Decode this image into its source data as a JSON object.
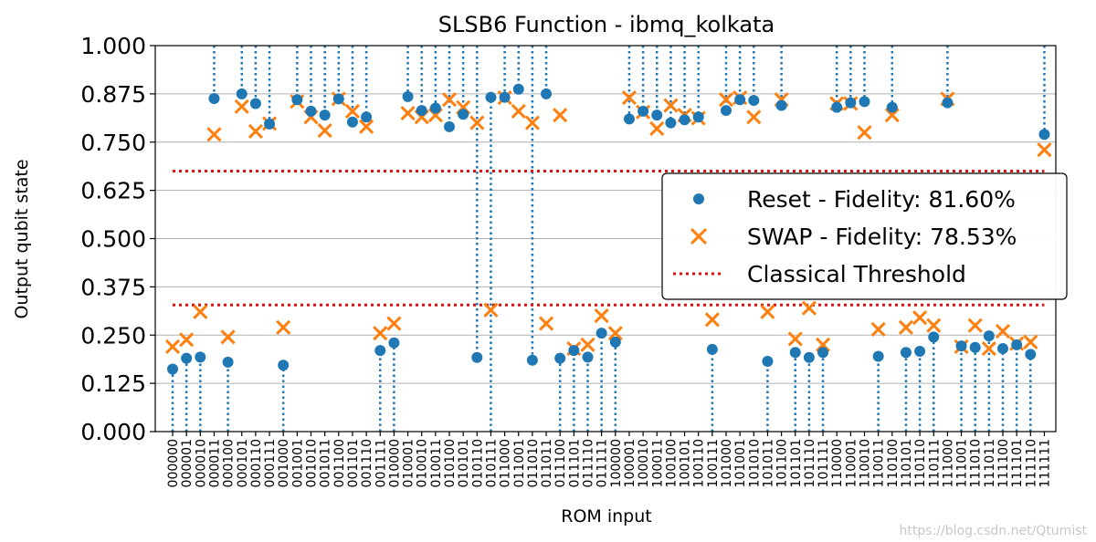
{
  "chart_data": {
    "type": "scatter",
    "title": "SLSB6 Function - ibmq_kolkata",
    "xlabel": "ROM input",
    "ylabel": "Output qubit state",
    "ylim": [
      0,
      1
    ],
    "yticks": [
      "0.000",
      "0.125",
      "0.250",
      "0.375",
      "0.500",
      "0.625",
      "0.750",
      "0.875",
      "1.000"
    ],
    "grid": "horizontal",
    "legend_position": "center-right",
    "categories": [
      "000000",
      "000001",
      "000010",
      "000011",
      "000100",
      "000101",
      "000110",
      "000111",
      "001000",
      "001001",
      "001010",
      "001011",
      "001100",
      "001101",
      "001110",
      "001111",
      "010000",
      "010001",
      "010010",
      "010011",
      "010100",
      "010101",
      "010110",
      "010111",
      "011000",
      "011001",
      "011010",
      "011011",
      "011100",
      "011101",
      "011110",
      "011111",
      "100000",
      "100001",
      "100010",
      "100011",
      "100100",
      "100101",
      "100110",
      "100111",
      "101000",
      "101001",
      "101010",
      "101011",
      "101100",
      "101101",
      "101110",
      "101111",
      "110000",
      "110001",
      "110010",
      "110011",
      "110100",
      "110101",
      "110110",
      "110111",
      "111000",
      "111001",
      "111010",
      "111011",
      "111100",
      "111101",
      "111110",
      "111111"
    ],
    "expected": [
      0,
      0,
      0,
      1,
      0,
      1,
      1,
      1,
      0,
      1,
      1,
      1,
      1,
      1,
      1,
      0,
      0,
      1,
      1,
      1,
      1,
      1,
      1,
      0,
      1,
      1,
      1,
      1,
      0,
      0,
      0,
      0,
      0,
      1,
      1,
      1,
      1,
      1,
      1,
      0,
      1,
      1,
      1,
      0,
      1,
      0,
      0,
      0,
      1,
      1,
      1,
      0,
      1,
      0,
      0,
      0,
      1,
      0,
      0,
      0,
      0,
      0,
      0,
      1
    ],
    "series": [
      {
        "name": "Reset - Fidelity: 81.60%",
        "marker": "circle",
        "color": "#1f77b4",
        "values": [
          0.162,
          0.19,
          0.193,
          0.863,
          0.18,
          0.875,
          0.85,
          0.797,
          0.172,
          0.86,
          0.83,
          0.82,
          0.862,
          0.802,
          0.815,
          0.21,
          0.23,
          0.868,
          0.832,
          0.838,
          0.79,
          0.822,
          0.192,
          0.866,
          0.866,
          0.887,
          0.185,
          0.875,
          0.19,
          0.21,
          0.193,
          0.255,
          0.232,
          0.81,
          0.83,
          0.82,
          0.8,
          0.808,
          0.815,
          0.213,
          0.832,
          0.86,
          0.858,
          0.182,
          0.845,
          0.205,
          0.192,
          0.205,
          0.84,
          0.852,
          0.855,
          0.195,
          0.84,
          0.205,
          0.208,
          0.245,
          0.852,
          0.222,
          0.218,
          0.248,
          0.215,
          0.225,
          0.2,
          0.77
        ]
      },
      {
        "name": "SWAP - Fidelity: 78.53%",
        "marker": "x",
        "color": "#ff7f0e",
        "values": [
          0.22,
          0.238,
          0.31,
          0.77,
          0.245,
          0.842,
          0.778,
          0.798,
          0.27,
          0.855,
          0.815,
          0.78,
          0.862,
          0.83,
          0.79,
          0.255,
          0.28,
          0.825,
          0.815,
          0.82,
          0.86,
          0.84,
          0.8,
          0.315,
          0.865,
          0.83,
          0.8,
          0.28,
          0.82,
          0.215,
          0.225,
          0.3,
          0.255,
          0.865,
          0.828,
          0.785,
          0.845,
          0.82,
          0.812,
          0.29,
          0.86,
          0.865,
          0.815,
          0.31,
          0.86,
          0.24,
          0.32,
          0.225,
          0.85,
          0.85,
          0.775,
          0.265,
          0.82,
          0.27,
          0.295,
          0.275,
          0.862,
          0.22,
          0.275,
          0.215,
          0.26,
          0.228,
          0.232,
          0.73
        ]
      }
    ],
    "threshold": {
      "name": "Classical Threshold",
      "color": "#dd1111",
      "values": [
        0.675,
        0.328
      ]
    }
  },
  "watermark": "https://blog.csdn.net/Qtumist"
}
